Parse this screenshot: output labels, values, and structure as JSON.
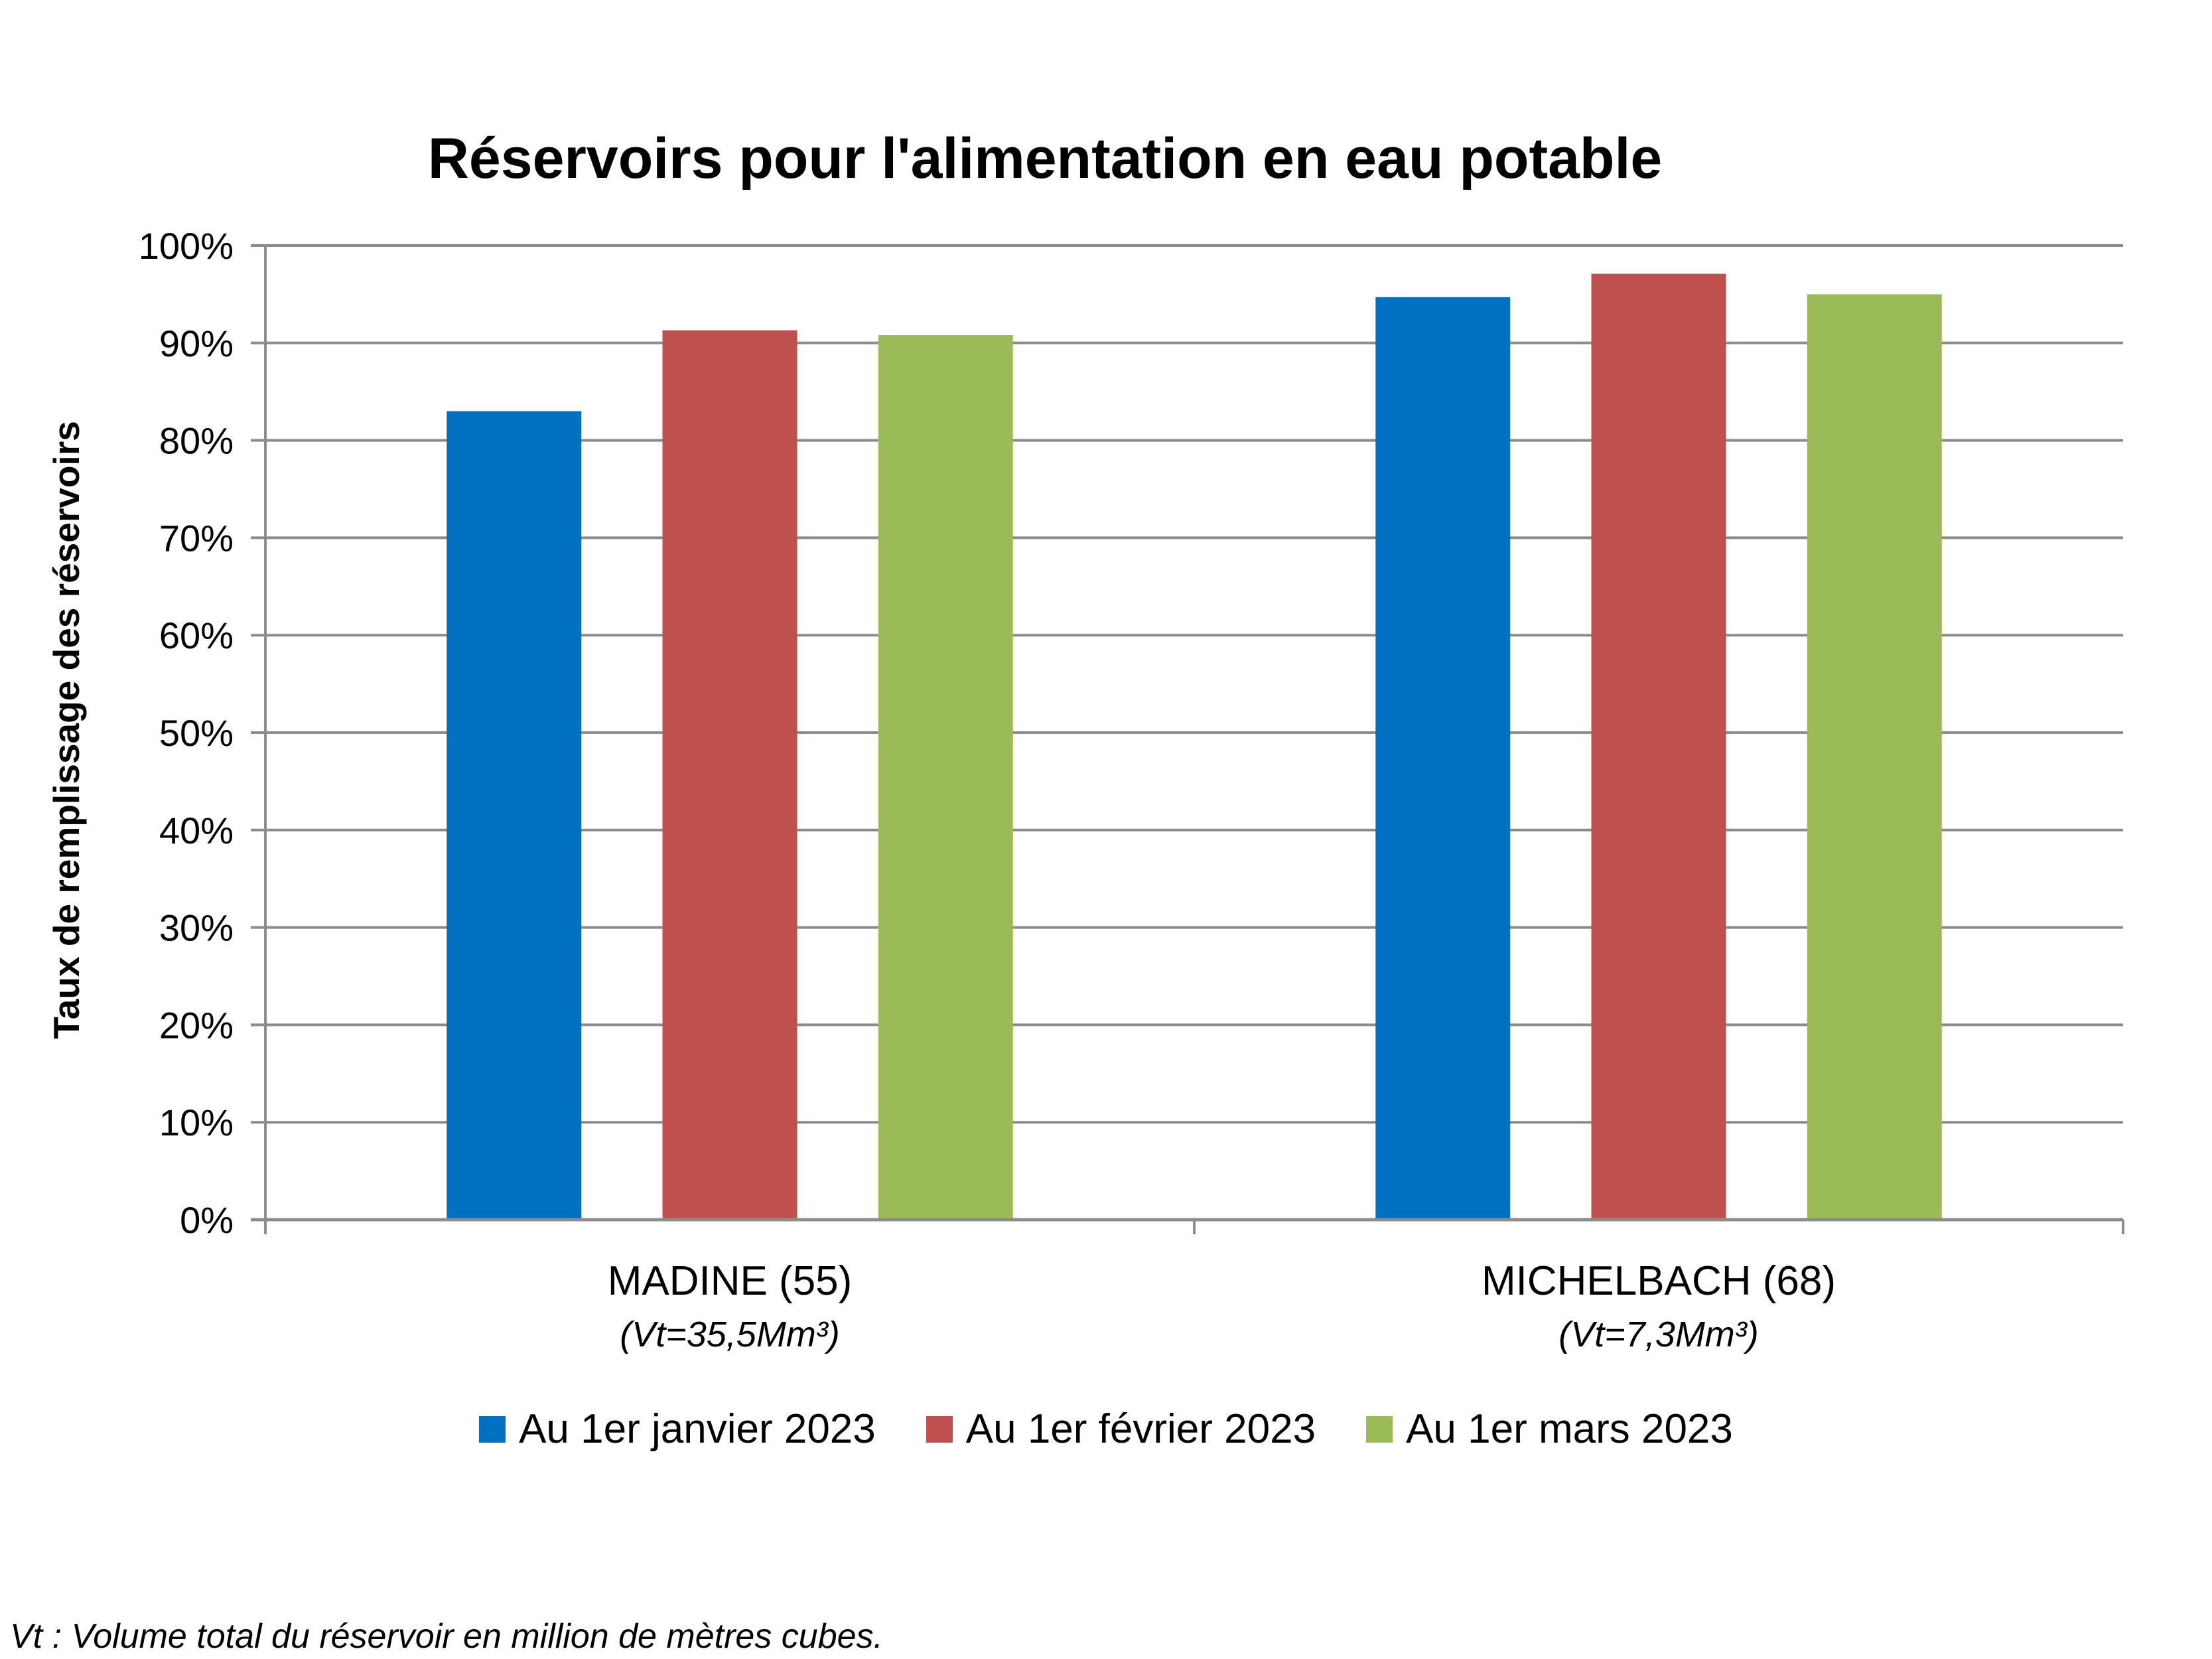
{
  "chart_data": {
    "type": "bar",
    "title": "Réservoirs pour l'alimentation en eau potable",
    "ylabel": "Taux de remplissage des réservoirs",
    "ylim": [
      0,
      100
    ],
    "y_ticks": [
      "0%",
      "10%",
      "20%",
      "30%",
      "40%",
      "50%",
      "60%",
      "70%",
      "80%",
      "90%",
      "100%"
    ],
    "categories": [
      "MADINE (55)",
      "MICHELBACH (68)"
    ],
    "category_notes": [
      "(Vt=35,5Mm³)",
      "(Vt=7,3Mm³)"
    ],
    "series": [
      {
        "name": "Au 1er janvier 2023",
        "color": "#0070C0",
        "values": [
          83,
          94.7
        ]
      },
      {
        "name": "Au 1er février 2023",
        "color": "#C0504D",
        "values": [
          91.3,
          97.1
        ]
      },
      {
        "name": "Au 1er mars 2023",
        "color": "#9BBB59",
        "values": [
          90.8,
          95
        ]
      }
    ],
    "grid": true,
    "legend_position": "bottom"
  },
  "footnote": "Vt : Volume total du réservoir en million de mètres cubes."
}
